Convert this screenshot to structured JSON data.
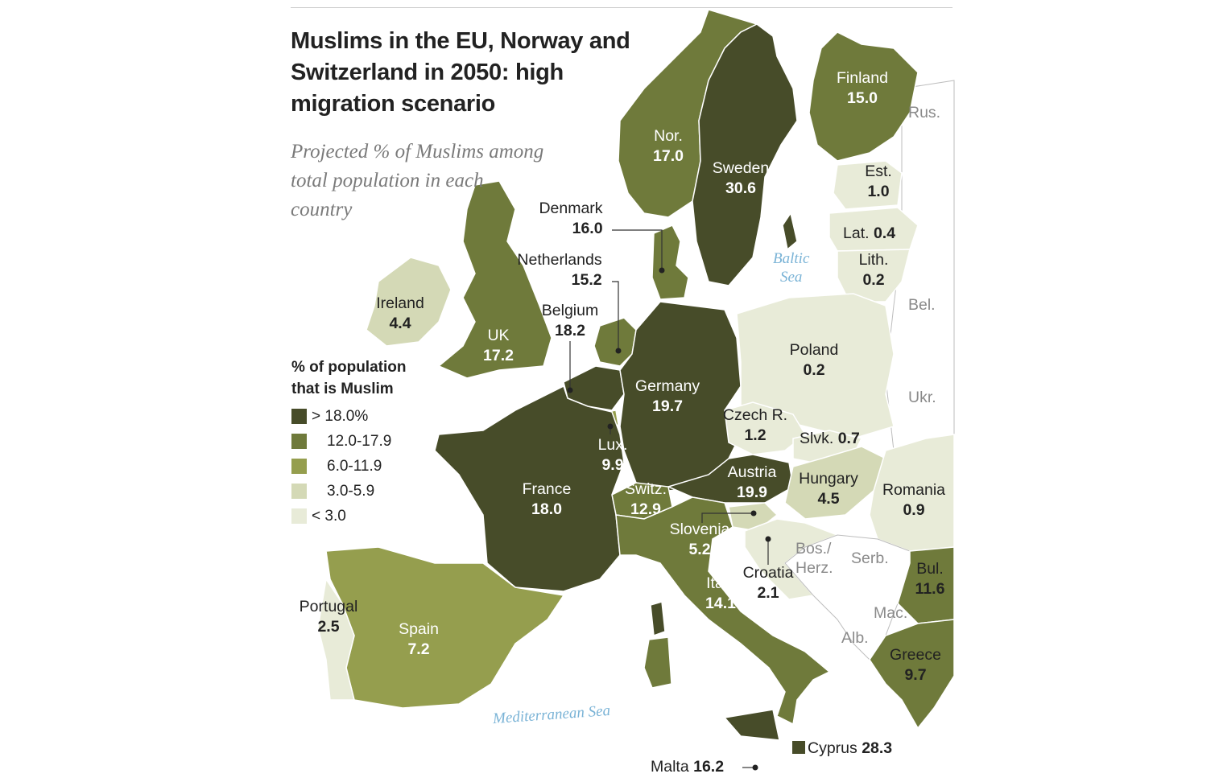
{
  "title": "Muslims in the EU, Norway and Switzerland in 2050: high migration scenario",
  "subtitle": "Projected % of Muslims among total population in each country",
  "legend": {
    "title_line1": "% of population",
    "title_line2": "that is Muslim",
    "items": [
      {
        "label": "> 18.0%",
        "color": "#474c29"
      },
      {
        "label": "12.0-17.9",
        "color": "#6f7a3b"
      },
      {
        "label": "6.0-11.9",
        "color": "#959e4e"
      },
      {
        "label": "3.0-5.9",
        "color": "#d4d9b6"
      },
      {
        "label": "< 3.0",
        "color": "#e8ebd8"
      }
    ]
  },
  "countries": {
    "finland": {
      "name": "Finland",
      "value": "15.0"
    },
    "norway": {
      "name": "Nor.",
      "value": "17.0"
    },
    "sweden": {
      "name": "Sweden",
      "value": "30.6"
    },
    "estonia": {
      "name": "Est.",
      "value": "1.0"
    },
    "latvia": {
      "name": "Lat.",
      "value": "0.4"
    },
    "lithuania": {
      "name": "Lith.",
      "value": "0.2"
    },
    "denmark": {
      "name": "Denmark",
      "value": "16.0"
    },
    "netherlands": {
      "name": "Netherlands",
      "value": "15.2"
    },
    "belgium": {
      "name": "Belgium",
      "value": "18.2"
    },
    "ireland": {
      "name": "Ireland",
      "value": "4.4"
    },
    "uk": {
      "name": "UK",
      "value": "17.2"
    },
    "poland": {
      "name": "Poland",
      "value": "0.2"
    },
    "germany": {
      "name": "Germany",
      "value": "19.7"
    },
    "czech": {
      "name": "Czech R.",
      "value": "1.2"
    },
    "slovakia": {
      "name": "Slvk.",
      "value": "0.7"
    },
    "luxembourg": {
      "name": "Lux.",
      "value": "9.9"
    },
    "austria": {
      "name": "Austria",
      "value": "19.9"
    },
    "hungary": {
      "name": "Hungary",
      "value": "4.5"
    },
    "romania": {
      "name": "Romania",
      "value": "0.9"
    },
    "france": {
      "name": "France",
      "value": "18.0"
    },
    "switzerland": {
      "name": "Switz.",
      "value": "12.9"
    },
    "slovenia": {
      "name": "Slovenia",
      "value": "5.2"
    },
    "croatia": {
      "name": "Croatia",
      "value": "2.1"
    },
    "bulgaria": {
      "name": "Bul.",
      "value": "11.6"
    },
    "italy": {
      "name": "Italy",
      "value": "14.1"
    },
    "portugal": {
      "name": "Portugal",
      "value": "2.5"
    },
    "spain": {
      "name": "Spain",
      "value": "7.2"
    },
    "greece": {
      "name": "Greece",
      "value": "9.7"
    },
    "cyprus": {
      "name": "Cyprus",
      "value": "28.3"
    },
    "malta": {
      "name": "Malta",
      "value": "16.2"
    }
  },
  "other_labels": {
    "russia": "Rus.",
    "belarus": "Bel.",
    "ukraine": "Ukr.",
    "bosnia_line1": "Bos./",
    "bosnia_line2": "Herz.",
    "serbia": "Serb.",
    "macedonia": "Mac.",
    "albania": "Alb."
  },
  "seas": {
    "baltic_line1": "Baltic",
    "baltic_line2": "Sea",
    "mediterranean": "Mediterranean Sea"
  }
}
